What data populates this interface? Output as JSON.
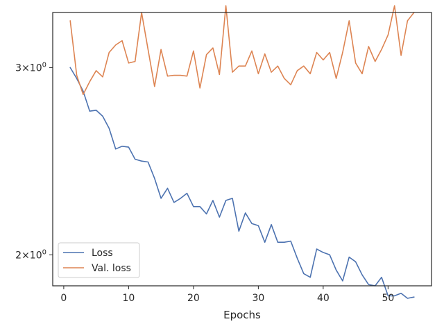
{
  "chart_data": {
    "type": "line",
    "xlabel": "Epochs",
    "ylabel": "",
    "yscale": "log",
    "xlim": [
      -1.7,
      56.7
    ],
    "ylim": [
      1.87,
      3.38
    ],
    "xticks": [
      0,
      10,
      20,
      30,
      40,
      50
    ],
    "xtick_labels": [
      "0",
      "10",
      "20",
      "30",
      "40",
      "50"
    ],
    "yticks": [
      2,
      3
    ],
    "ytick_labels": [
      {
        "base": "2",
        "mult": "×",
        "exp_base": "10",
        "exp": "0"
      },
      {
        "base": "3",
        "mult": "×",
        "exp_base": "10",
        "exp": "0"
      }
    ],
    "grid": false,
    "legend_position": "lower-left",
    "x": [
      1,
      2,
      3,
      4,
      5,
      6,
      7,
      8,
      9,
      10,
      11,
      12,
      13,
      14,
      15,
      16,
      17,
      18,
      19,
      20,
      21,
      22,
      23,
      24,
      25,
      26,
      27,
      28,
      29,
      30,
      31,
      32,
      33,
      34,
      35,
      36,
      37,
      38,
      39,
      40,
      41,
      42,
      43,
      44,
      45,
      46,
      47,
      48,
      49,
      50,
      51,
      52,
      53,
      54
    ],
    "series": [
      {
        "name": "Loss",
        "color": "#4c72b0",
        "values": [
          3.0,
          2.93,
          2.85,
          2.73,
          2.735,
          2.7,
          2.63,
          2.515,
          2.53,
          2.525,
          2.46,
          2.45,
          2.445,
          2.36,
          2.26,
          2.31,
          2.24,
          2.26,
          2.285,
          2.22,
          2.22,
          2.185,
          2.25,
          2.17,
          2.25,
          2.26,
          2.105,
          2.19,
          2.14,
          2.13,
          2.055,
          2.135,
          2.055,
          2.055,
          2.06,
          1.985,
          1.92,
          1.905,
          2.025,
          2.01,
          2.0,
          1.935,
          1.89,
          1.99,
          1.97,
          1.915,
          1.875,
          1.87,
          1.905,
          1.83,
          1.83,
          1.84,
          1.82,
          1.825
        ]
      },
      {
        "name": "Val. loss",
        "color": "#dd8452",
        "values": [
          3.32,
          2.95,
          2.83,
          2.91,
          2.98,
          2.94,
          3.1,
          3.15,
          3.18,
          3.03,
          3.04,
          3.38,
          3.12,
          2.88,
          3.12,
          2.945,
          2.95,
          2.95,
          2.945,
          3.11,
          2.87,
          3.085,
          3.13,
          2.955,
          3.43,
          2.97,
          3.01,
          3.01,
          3.11,
          2.96,
          3.09,
          2.97,
          3.01,
          2.93,
          2.89,
          2.98,
          3.01,
          2.96,
          3.1,
          3.05,
          3.1,
          2.93,
          3.1,
          3.32,
          3.03,
          2.96,
          3.14,
          3.04,
          3.12,
          3.22,
          3.43,
          3.08,
          3.32,
          3.38
        ]
      }
    ]
  }
}
